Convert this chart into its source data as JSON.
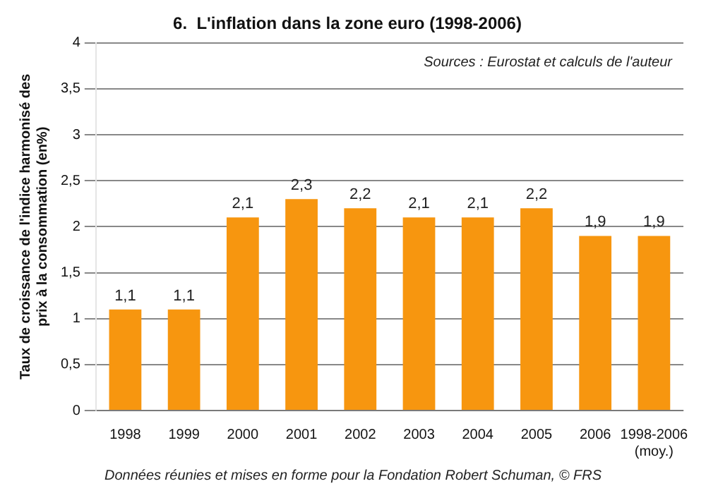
{
  "chart_data": {
    "type": "bar",
    "title": "6.  L'inflation dans la zone euro (1998-2006)",
    "ylabel": "Taux de croissance de l'indice harmonisé des prix à la consommation (en%)",
    "categories": [
      "1998",
      "1999",
      "2000",
      "2001",
      "2002",
      "2003",
      "2004",
      "2005",
      "2006",
      "1998-2006 (moy.)"
    ],
    "values": [
      1.1,
      1.1,
      2.1,
      2.3,
      2.2,
      2.1,
      2.1,
      2.2,
      1.9,
      1.9
    ],
    "value_labels": [
      "1,1",
      "1,1",
      "2,1",
      "2,3",
      "2,2",
      "2,1",
      "2,1",
      "2,2",
      "1,9",
      "1,9"
    ],
    "color": "#f7960f",
    "ylim": [
      0,
      4
    ],
    "yticks": [
      0,
      {
        "value": 0.5,
        "label": "0,5"
      },
      1,
      {
        "value": 1.5,
        "label": "1,5"
      },
      2,
      {
        "value": 2.5,
        "label": "2,5"
      },
      3,
      {
        "value": 3.5,
        "label": "3,5"
      },
      4
    ],
    "grid": "y",
    "legend": false,
    "annotations": [
      "Sources : Eurostat et calculs de l'auteur",
      "Données réunies et mises en forme pour la Fondation Robert Schuman, © FRS"
    ]
  }
}
